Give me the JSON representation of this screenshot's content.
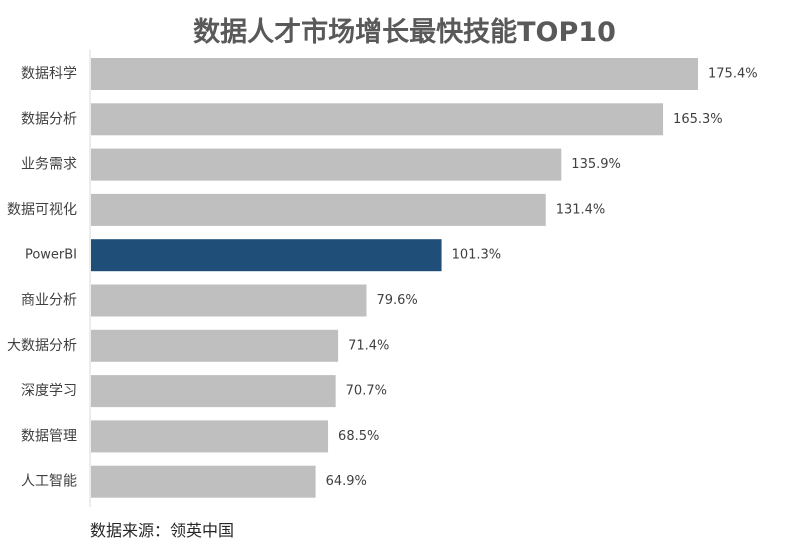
{
  "source_text": "数据来源：领英中国",
  "chart_data": {
    "type": "bar",
    "orientation": "horizontal",
    "title": "数据人才市场增长最快技能TOP10",
    "categories": [
      "数据科学",
      "数据分析",
      "业务需求",
      "数据可视化",
      "PowerBI",
      "商业分析",
      "大数据分析",
      "深度学习",
      "数据管理",
      "人工智能"
    ],
    "values": [
      175.4,
      165.3,
      135.9,
      131.4,
      101.3,
      79.6,
      71.4,
      70.7,
      68.5,
      64.9
    ],
    "value_labels": [
      "175.4%",
      "165.3%",
      "135.9%",
      "131.4%",
      "101.3%",
      "79.6%",
      "71.4%",
      "70.7%",
      "68.5%",
      "64.9%"
    ],
    "highlight_category": "PowerBI",
    "colors": {
      "bar": "#bfbfbf",
      "highlight": "#1f4e79",
      "axis": "#d9d9d9",
      "text": "#404040"
    },
    "xlim": [
      0,
      175.4
    ],
    "grid": false,
    "xlabel": "",
    "ylabel": ""
  }
}
